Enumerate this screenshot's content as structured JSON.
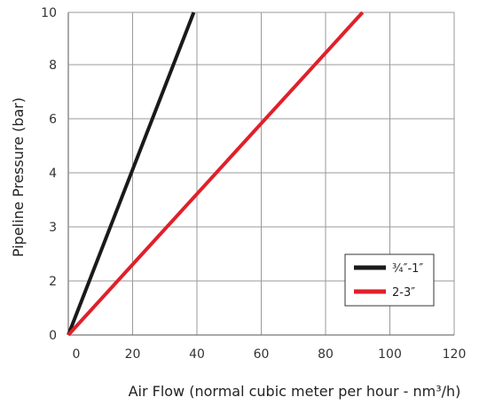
{
  "chart_data": {
    "type": "line",
    "xlabel": "Air Flow (normal cubic meter per hour - nm³/h)",
    "ylabel": "Pipeline Pressure (bar)",
    "xlim": [
      0,
      120
    ],
    "ylim": [
      0,
      10
    ],
    "x_ticks": [
      "0",
      "20",
      "40",
      "60",
      "80",
      "100",
      "120"
    ],
    "y_ticks": [
      "0",
      "2",
      "3",
      "4",
      "6",
      "8",
      "10"
    ],
    "grid": true,
    "legend_position": "bottom-right",
    "series": [
      {
        "name": "¾″-1″",
        "color": "#1a1a1a",
        "x": [
          0,
          39
        ],
        "y": [
          0,
          10
        ]
      },
      {
        "name": "2-3″",
        "color": "#e0202a",
        "x": [
          0,
          91.5
        ],
        "y": [
          0,
          10
        ]
      }
    ]
  }
}
